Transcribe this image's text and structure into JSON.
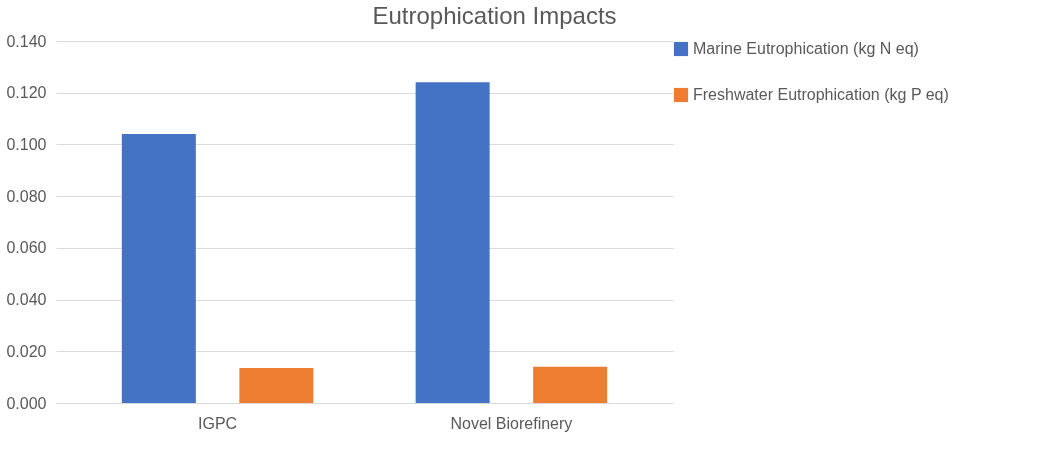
{
  "chart_data": {
    "type": "bar",
    "title": "Eutrophication Impacts",
    "categories": [
      "IGPC",
      "Novel Biorefinery"
    ],
    "series": [
      {
        "name": "Marine Eutrophication (kg N eq)",
        "color": "#4472c4",
        "values": [
          0.104,
          0.124
        ]
      },
      {
        "name": "Freshwater Eutrophication (kg P eq)",
        "color": "#ed7d31",
        "values": [
          0.0135,
          0.014
        ]
      }
    ],
    "ylim": [
      0,
      0.14
    ],
    "yticks": [
      {
        "value": 0,
        "label": "0.000"
      },
      {
        "value": 0.02,
        "label": "0.020"
      },
      {
        "value": 0.04,
        "label": "0.040"
      },
      {
        "value": 0.06,
        "label": "0.060"
      },
      {
        "value": 0.08,
        "label": "0.080"
      },
      {
        "value": 0.1,
        "label": "0.100"
      },
      {
        "value": 0.12,
        "label": "0.120"
      },
      {
        "value": 0.14,
        "label": "0.140"
      }
    ],
    "grid": "y",
    "legend": "right"
  }
}
